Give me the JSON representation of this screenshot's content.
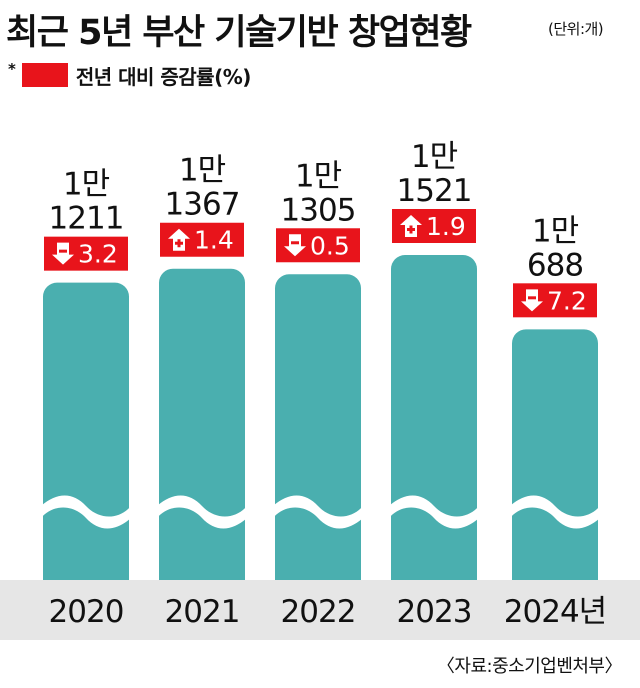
{
  "title": "최근 5년 부산 기술기반 창업현황",
  "unit": "(단위:개)",
  "legend": {
    "marker": "*",
    "label": "전년 대비 증감률(%)",
    "color": "#e8141b"
  },
  "source": "〈자료:중소기업벤처부〉",
  "colors": {
    "bar": "#4aafaf",
    "badge": "#e8141b",
    "floor": "#e6e6e6"
  },
  "chart_data": {
    "type": "bar",
    "categories": [
      "2020",
      "2021",
      "2022",
      "2023",
      "2024년"
    ],
    "values": [
      11211,
      11367,
      11305,
      11521,
      10688
    ],
    "value_labels": [
      [
        "1만",
        "1211"
      ],
      [
        "1만",
        "1367"
      ],
      [
        "1만",
        "1305"
      ],
      [
        "1만",
        "1521"
      ],
      [
        "1만",
        "688"
      ]
    ],
    "change_pct": [
      {
        "direction": "down",
        "value": "3.2"
      },
      {
        "direction": "up",
        "value": "1.4"
      },
      {
        "direction": "down",
        "value": "0.5"
      },
      {
        "direction": "up",
        "value": "1.9"
      },
      {
        "direction": "down",
        "value": "7.2"
      }
    ],
    "axis_break": true
  }
}
